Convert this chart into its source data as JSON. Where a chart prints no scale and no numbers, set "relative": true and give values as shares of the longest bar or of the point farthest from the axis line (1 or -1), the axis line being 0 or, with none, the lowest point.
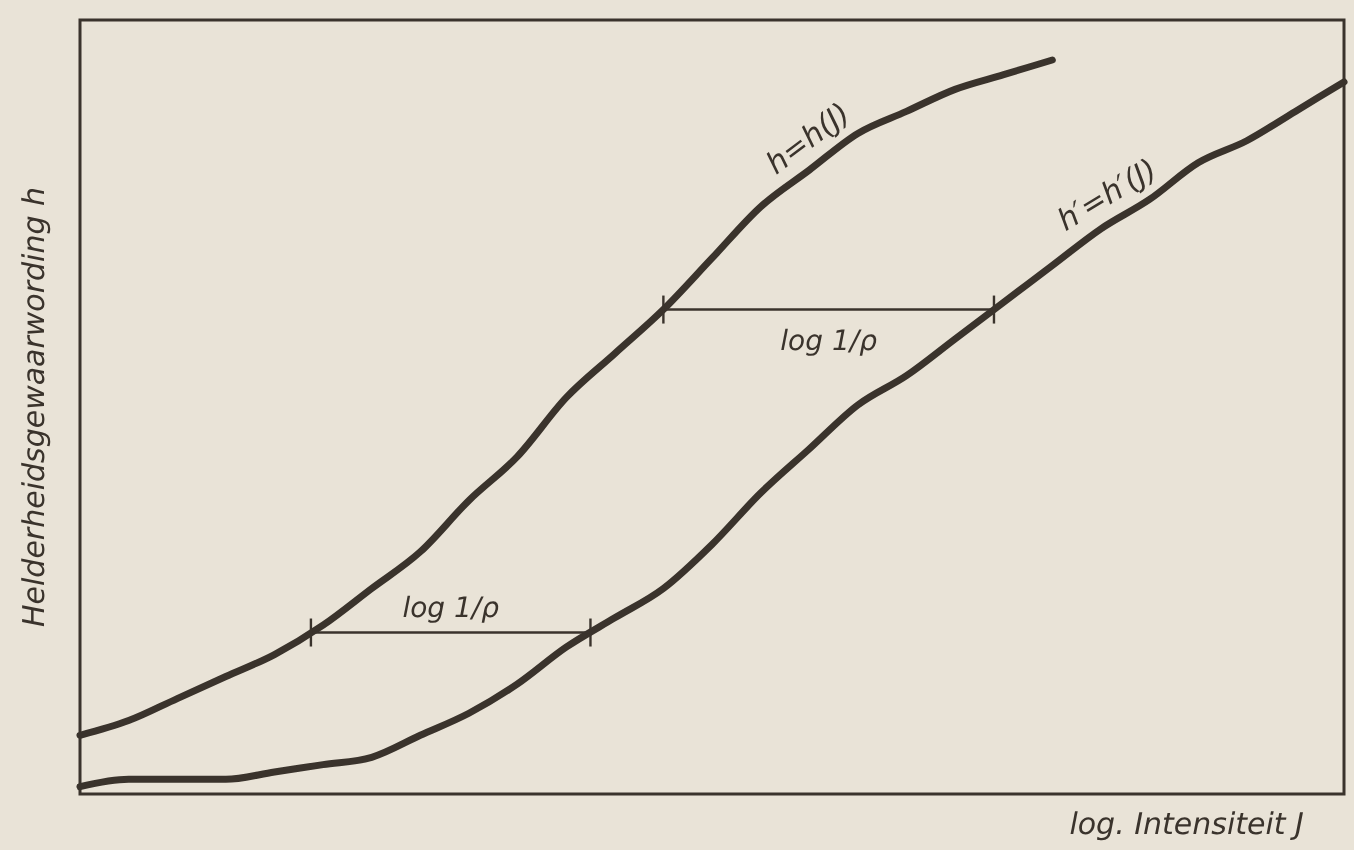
{
  "chart_data": {
    "type": "line",
    "relative": true,
    "xlabel": "log. Intensiteit J",
    "ylabel": "Helderheidsgewaarwording h",
    "categories": [
      null,
      null,
      null,
      null,
      null,
      null,
      null,
      null,
      null,
      null,
      null,
      null,
      null,
      null,
      null,
      null,
      null,
      null,
      null,
      null,
      null,
      null,
      null,
      null,
      null,
      null,
      null
    ],
    "series": [
      {
        "name": "h=h(J)",
        "color": "#3a332c",
        "values": [
          0.08,
          0.1,
          0.13,
          0.16,
          0.19,
          0.23,
          0.28,
          0.33,
          0.4,
          0.46,
          0.54,
          0.6,
          0.66,
          0.73,
          0.8,
          0.85,
          0.9,
          0.93,
          0.96,
          0.98,
          1.0,
          null,
          null,
          null,
          null,
          null,
          null
        ]
      },
      {
        "name": "h′=h′(J)",
        "color": "#3a332c",
        "values": [
          0.01,
          0.02,
          0.02,
          0.02,
          0.03,
          0.04,
          0.05,
          0.08,
          0.11,
          0.15,
          0.2,
          0.24,
          0.28,
          0.34,
          0.41,
          0.47,
          0.53,
          0.57,
          0.62,
          0.67,
          0.72,
          0.77,
          0.81,
          0.86,
          0.89,
          0.93,
          0.97
        ]
      }
    ],
    "annotations": [
      "log 1/ρ",
      "log 1/ρ"
    ],
    "marker": "none",
    "line_style": "solid"
  }
}
